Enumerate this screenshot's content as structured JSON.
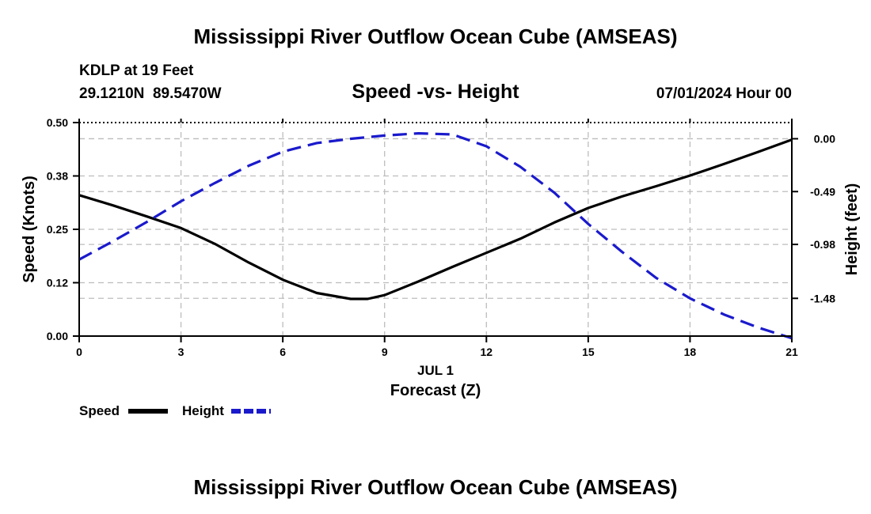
{
  "page": {
    "title": "Mississippi River Outflow Ocean Cube (AMSEAS)",
    "footer_title": "Mississippi River Outflow Ocean Cube (AMSEAS)"
  },
  "header": {
    "station": "KDLP at 19 Feet",
    "coords": "29.1210N  89.5470W",
    "subtitle": "Speed -vs- Height",
    "datetime": "07/01/2024 Hour 00"
  },
  "chart_data": {
    "type": "line",
    "title": "Speed -vs- Height",
    "xlabel": "Forecast (Z)",
    "xsublabel": "JUL 1",
    "ylabel": "Speed (Knots)",
    "y2label": "Height (feet)",
    "xlim": [
      0,
      21
    ],
    "ylim": [
      0,
      0.5
    ],
    "y2lim": [
      -1.83,
      0.15
    ],
    "x_ticks": [
      0,
      3,
      6,
      9,
      12,
      15,
      18,
      21
    ],
    "x_tick_labels": [
      "0",
      "3",
      "6",
      "9",
      "12",
      "15",
      "18",
      "21"
    ],
    "y_ticks": [
      0,
      0.125,
      0.25,
      0.375,
      0.5
    ],
    "y_tick_labels": [
      "0.00",
      "0.12",
      "0.25",
      "0.38",
      "0.50"
    ],
    "y2_ticks": [
      0.0,
      -0.49,
      -0.98,
      -1.48
    ],
    "y2_tick_labels": [
      "0.00",
      "-0.49",
      "-0.98",
      "-1.48"
    ],
    "grid": true,
    "series": [
      {
        "name": "Speed",
        "axis": "left",
        "color": "#000000",
        "dash": "solid",
        "x": [
          0,
          1,
          2,
          3,
          4,
          5,
          6,
          7,
          8,
          8.5,
          9,
          10,
          11,
          12,
          13,
          14,
          15,
          16,
          17,
          18,
          19,
          20,
          21
        ],
        "values": [
          0.33,
          0.306,
          0.28,
          0.253,
          0.216,
          0.172,
          0.132,
          0.101,
          0.087,
          0.087,
          0.096,
          0.128,
          0.162,
          0.195,
          0.228,
          0.266,
          0.3,
          0.327,
          0.351,
          0.376,
          0.403,
          0.431,
          0.46
        ]
      },
      {
        "name": "Height",
        "axis": "right",
        "color": "#1a1acc",
        "dash": "dashed",
        "x": [
          0,
          1,
          2,
          3,
          4,
          5,
          6,
          7,
          8,
          9,
          10,
          11,
          12,
          13,
          14,
          15,
          16,
          17,
          18,
          19,
          20,
          21
        ],
        "values": [
          -1.12,
          -0.95,
          -0.77,
          -0.58,
          -0.41,
          -0.25,
          -0.12,
          -0.04,
          0.0,
          0.03,
          0.05,
          0.04,
          -0.07,
          -0.26,
          -0.5,
          -0.79,
          -1.05,
          -1.29,
          -1.48,
          -1.63,
          -1.75,
          -1.85
        ]
      }
    ],
    "legend": [
      {
        "label": "Speed",
        "color": "#000000",
        "dash": "solid"
      },
      {
        "label": "Height",
        "color": "#1a1acc",
        "dash": "dashed"
      }
    ],
    "legend_position": "bottom-left"
  }
}
